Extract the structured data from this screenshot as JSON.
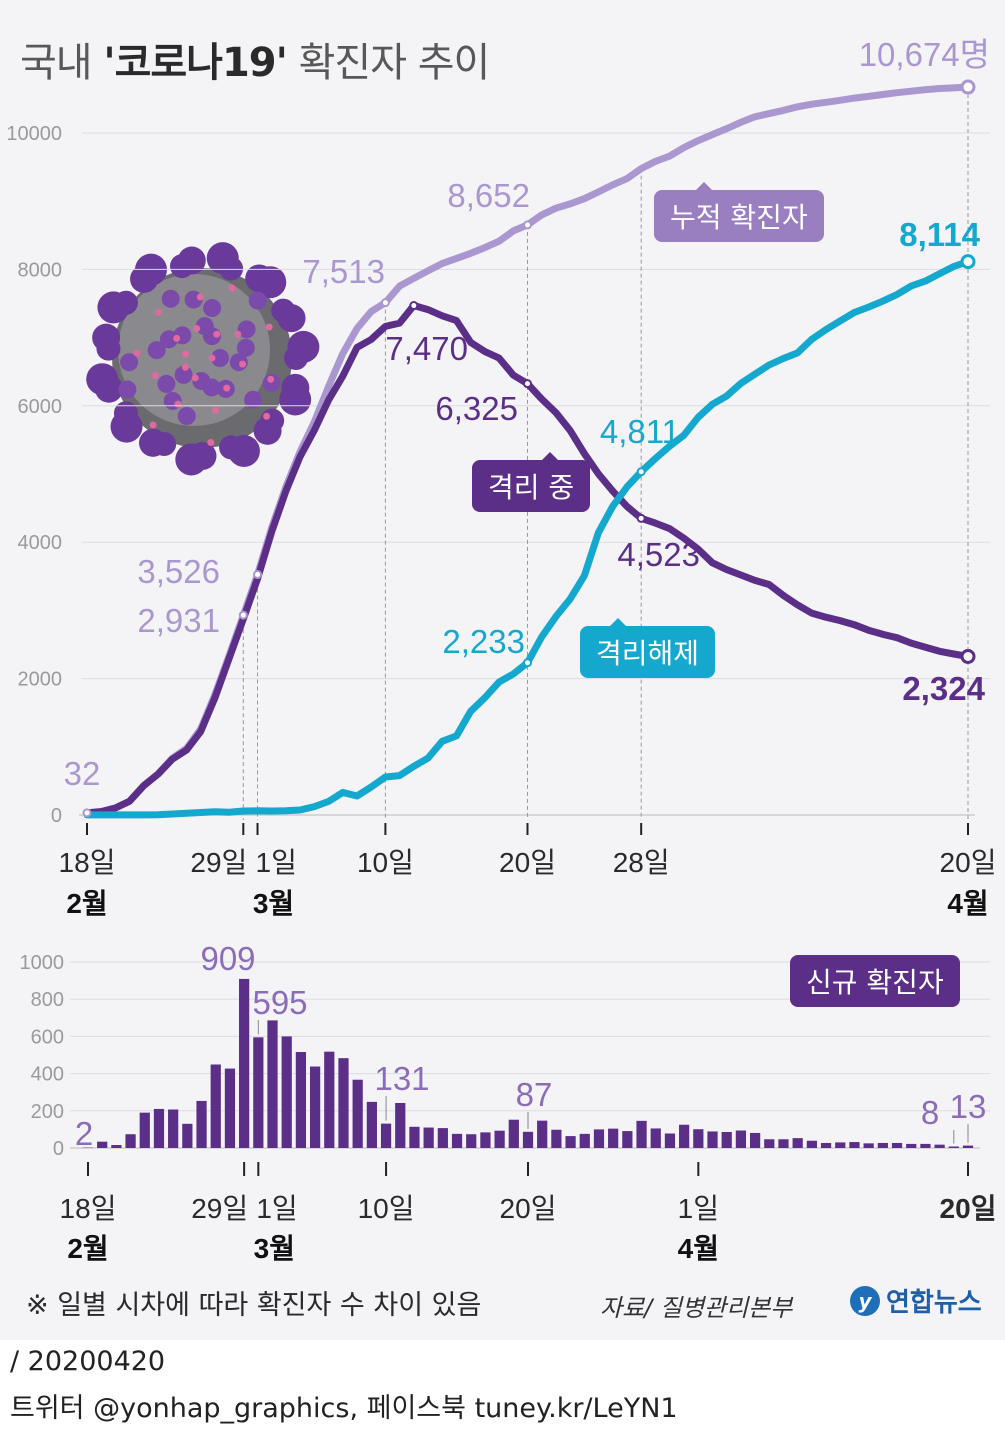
{
  "title": {
    "prefix": "국내 ",
    "highlight": "'코로나19'",
    "suffix": " 확진자 추이"
  },
  "colors": {
    "cumulative": "#ab97cf",
    "isolated": "#5b2e88",
    "released": "#14a8cf",
    "bars": "#5b2e88",
    "background": "#f4f3f6"
  },
  "icons": {
    "virus": "coronavirus-illustration"
  },
  "chart_data": [
    {
      "type": "line",
      "title": "국내 '코로나19' 확진자 추이",
      "ylim": [
        0,
        10000
      ],
      "yticks": [
        "0",
        "2000",
        "4000",
        "6000",
        "8000",
        "10000"
      ],
      "grid": true,
      "x_dates": [
        "2020-02-18",
        "2020-02-19",
        "2020-02-20",
        "2020-02-21",
        "2020-02-22",
        "2020-02-23",
        "2020-02-24",
        "2020-02-25",
        "2020-02-26",
        "2020-02-27",
        "2020-02-28",
        "2020-02-29",
        "2020-03-01",
        "2020-03-02",
        "2020-03-03",
        "2020-03-04",
        "2020-03-05",
        "2020-03-06",
        "2020-03-07",
        "2020-03-08",
        "2020-03-09",
        "2020-03-10",
        "2020-03-11",
        "2020-03-12",
        "2020-03-13",
        "2020-03-14",
        "2020-03-15",
        "2020-03-16",
        "2020-03-17",
        "2020-03-18",
        "2020-03-19",
        "2020-03-20",
        "2020-03-21",
        "2020-03-22",
        "2020-03-23",
        "2020-03-24",
        "2020-03-25",
        "2020-03-26",
        "2020-03-27",
        "2020-03-28",
        "2020-03-29",
        "2020-03-30",
        "2020-03-31",
        "2020-04-01",
        "2020-04-02",
        "2020-04-03",
        "2020-04-04",
        "2020-04-05",
        "2020-04-06",
        "2020-04-07",
        "2020-04-08",
        "2020-04-09",
        "2020-04-10",
        "2020-04-11",
        "2020-04-12",
        "2020-04-13",
        "2020-04-14",
        "2020-04-15",
        "2020-04-16",
        "2020-04-17",
        "2020-04-18",
        "2020-04-19",
        "2020-04-20"
      ],
      "x_tick_labels": [
        {
          "date": "2020-02-18",
          "day": "18일",
          "month": "2월"
        },
        {
          "date": "2020-02-29",
          "day": "29일",
          "month": ""
        },
        {
          "date": "2020-03-01",
          "day": "1일",
          "month": "3월"
        },
        {
          "date": "2020-03-10",
          "day": "10일",
          "month": ""
        },
        {
          "date": "2020-03-20",
          "day": "20일",
          "month": ""
        },
        {
          "date": "2020-03-28",
          "day": "28일",
          "month": ""
        },
        {
          "date": "2020-04-20",
          "day": "20일",
          "month": "4월"
        }
      ],
      "series": [
        {
          "name": "누적 확진자",
          "values": [
            32,
            51,
            104,
            204,
            433,
            602,
            833,
            977,
            1261,
            1766,
            2337,
            2931,
            3526,
            4212,
            4812,
            5328,
            5766,
            6284,
            6767,
            7134,
            7382,
            7513,
            7755,
            7869,
            7979,
            8086,
            8162,
            8236,
            8320,
            8413,
            8565,
            8652,
            8799,
            8897,
            8961,
            9037,
            9137,
            9241,
            9332,
            9478,
            9583,
            9661,
            9786,
            9887,
            9976,
            10062,
            10156,
            10237,
            10284,
            10331,
            10384,
            10423,
            10450,
            10480,
            10512,
            10537,
            10564,
            10591,
            10613,
            10635,
            10653,
            10661,
            10674
          ]
        },
        {
          "name": "격리 중",
          "values": [
            31,
            50,
            102,
            202,
            431,
            598,
            818,
            952,
            1224,
            1717,
            2296,
            2873,
            3464,
            4154,
            4750,
            5255,
            5643,
            6085,
            6436,
            6856,
            6972,
            7164,
            7213,
            7470,
            7410,
            7320,
            7250,
            6930,
            6795,
            6700,
            6450,
            6325,
            6100,
            5900,
            5640,
            5300,
            5000,
            4750,
            4523,
            4350,
            4280,
            4200,
            4060,
            3900,
            3700,
            3600,
            3520,
            3440,
            3380,
            3220,
            3080,
            2960,
            2900,
            2850,
            2790,
            2710,
            2650,
            2600,
            2520,
            2460,
            2400,
            2360,
            2324
          ]
        },
        {
          "name": "격리해제",
          "values": [
            1,
            1,
            2,
            2,
            2,
            4,
            15,
            25,
            37,
            49,
            41,
            58,
            62,
            58,
            62,
            73,
            123,
            199,
            331,
            278,
            410,
            557,
            578,
            714,
            834,
            1080,
            1160,
            1520,
            1720,
            1950,
            2068,
            2233,
            2612,
            2909,
            3166,
            3507,
            4144,
            4528,
            4811,
            5033,
            5228,
            5408,
            5567,
            5828,
            6021,
            6141,
            6325,
            6463,
            6598,
            6694,
            6776,
            6973,
            7117,
            7243,
            7368,
            7447,
            7534,
            7632,
            7757,
            7829,
            7937,
            8042,
            8114
          ]
        }
      ],
      "annotations": [
        {
          "series": "누적 확진자",
          "date": "2020-02-18",
          "label": "32"
        },
        {
          "series": "누적 확진자",
          "date": "2020-02-29",
          "label": "2,931"
        },
        {
          "series": "누적 확진자",
          "date": "2020-03-01",
          "label": "3,526"
        },
        {
          "series": "누적 확진자",
          "date": "2020-03-10",
          "label": "7,513"
        },
        {
          "series": "누적 확진자",
          "date": "2020-03-20",
          "label": "8,652"
        },
        {
          "series": "누적 확진자",
          "date": "2020-04-20",
          "label": "10,674명"
        },
        {
          "series": "격리 중",
          "date": "2020-03-12",
          "label": "7,470"
        },
        {
          "series": "격리 중",
          "date": "2020-03-20",
          "label": "6,325"
        },
        {
          "series": "격리 중",
          "date": "2020-03-28",
          "label": "4,523"
        },
        {
          "series": "격리 중",
          "date": "2020-04-20",
          "label": "2,324"
        },
        {
          "series": "격리해제",
          "date": "2020-03-20",
          "label": "2,233"
        },
        {
          "series": "격리해제",
          "date": "2020-03-28",
          "label": "4,811"
        },
        {
          "series": "격리해제",
          "date": "2020-04-20",
          "label": "8,114"
        }
      ]
    },
    {
      "type": "bar",
      "series_name": "신규 확진자",
      "ylim": [
        0,
        1000
      ],
      "yticks": [
        "0",
        "200",
        "400",
        "600",
        "800",
        "1000"
      ],
      "x_tick_labels": [
        {
          "date": "2020-02-18",
          "day": "18일",
          "month": "2월"
        },
        {
          "date": "2020-02-29",
          "day": "29일",
          "month": ""
        },
        {
          "date": "2020-03-01",
          "day": "1일",
          "month": "3월"
        },
        {
          "date": "2020-03-10",
          "day": "10일",
          "month": ""
        },
        {
          "date": "2020-03-20",
          "day": "20일",
          "month": ""
        },
        {
          "date": "2020-04-01",
          "day": "1일",
          "month": "4월"
        },
        {
          "date": "2020-04-20",
          "day": "20일",
          "month": ""
        }
      ],
      "categories": [
        "2020-02-18",
        "2020-02-19",
        "2020-02-20",
        "2020-02-21",
        "2020-02-22",
        "2020-02-23",
        "2020-02-24",
        "2020-02-25",
        "2020-02-26",
        "2020-02-27",
        "2020-02-28",
        "2020-02-29",
        "2020-03-01",
        "2020-03-02",
        "2020-03-03",
        "2020-03-04",
        "2020-03-05",
        "2020-03-06",
        "2020-03-07",
        "2020-03-08",
        "2020-03-09",
        "2020-03-10",
        "2020-03-11",
        "2020-03-12",
        "2020-03-13",
        "2020-03-14",
        "2020-03-15",
        "2020-03-16",
        "2020-03-17",
        "2020-03-18",
        "2020-03-19",
        "2020-03-20",
        "2020-03-21",
        "2020-03-22",
        "2020-03-23",
        "2020-03-24",
        "2020-03-25",
        "2020-03-26",
        "2020-03-27",
        "2020-03-28",
        "2020-03-29",
        "2020-03-30",
        "2020-03-31",
        "2020-04-01",
        "2020-04-02",
        "2020-04-03",
        "2020-04-04",
        "2020-04-05",
        "2020-04-06",
        "2020-04-07",
        "2020-04-08",
        "2020-04-09",
        "2020-04-10",
        "2020-04-11",
        "2020-04-12",
        "2020-04-13",
        "2020-04-14",
        "2020-04-15",
        "2020-04-16",
        "2020-04-17",
        "2020-04-18",
        "2020-04-19",
        "2020-04-20"
      ],
      "values": [
        2,
        34,
        16,
        74,
        190,
        210,
        207,
        130,
        253,
        449,
        427,
        909,
        595,
        686,
        600,
        516,
        438,
        518,
        483,
        367,
        248,
        131,
        242,
        114,
        110,
        107,
        76,
        74,
        84,
        93,
        152,
        87,
        147,
        98,
        64,
        76,
        100,
        104,
        91,
        146,
        105,
        78,
        125,
        101,
        89,
        86,
        94,
        81,
        47,
        47,
        53,
        39,
        27,
        30,
        32,
        25,
        27,
        27,
        22,
        22,
        18,
        8,
        13
      ],
      "labels": [
        {
          "date": "2020-02-18",
          "label": "2"
        },
        {
          "date": "2020-02-29",
          "label": "909"
        },
        {
          "date": "2020-03-01",
          "label": "595"
        },
        {
          "date": "2020-03-10",
          "label": "131"
        },
        {
          "date": "2020-03-20",
          "label": "87"
        },
        {
          "date": "2020-04-19",
          "label": "8"
        },
        {
          "date": "2020-04-20",
          "label": "13"
        }
      ]
    }
  ],
  "legend_tags": {
    "cumulative": "누적 확진자",
    "isolated": "격리 중",
    "released": "격리해제",
    "new": "신규 확진자"
  },
  "note": "※ 일별 시차에 따라 확진자 수 차이 있음",
  "source": "자료/ 질병관리본부",
  "logo": {
    "mark": "y",
    "text": "연합뉴스"
  },
  "footer": {
    "date": "/ 20200420",
    "social": "트위터 @yonhap_graphics, 페이스북 tuney.kr/LeYN1"
  }
}
